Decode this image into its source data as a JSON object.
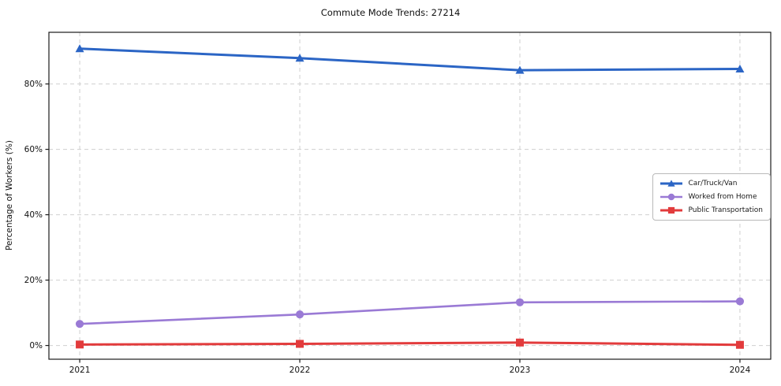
{
  "chart_data": {
    "type": "line",
    "title": "Commute Mode Trends: 27214",
    "xlabel": "",
    "ylabel": "Percentage of Workers (%)",
    "x": [
      2021,
      2022,
      2023,
      2024
    ],
    "x_tick_labels": [
      "2021",
      "2022",
      "2023",
      "2024"
    ],
    "series": [
      {
        "name": "Car/Truck/Van",
        "marker": "triangle",
        "color": "#2b65c5",
        "line_width": 3,
        "values": [
          90.8,
          87.9,
          84.2,
          84.6
        ]
      },
      {
        "name": "Worked from Home",
        "marker": "circle",
        "color": "#9a7ad5",
        "line_width": 2.6,
        "values": [
          6.6,
          9.5,
          13.2,
          13.5
        ]
      },
      {
        "name": "Public Transportation",
        "marker": "square",
        "color": "#e23b3c",
        "line_width": 3,
        "values": [
          0.3,
          0.5,
          0.9,
          0.2
        ]
      }
    ],
    "yticks": [
      0,
      20,
      40,
      60,
      80
    ],
    "ytick_format": "{v}%",
    "xlim": [
      2020.86,
      2024.14
    ],
    "ylim": [
      -4.2,
      95.8
    ],
    "grid": "dashed-both-axes",
    "grid_color": "#cfcfcf",
    "frame_color": "#1a1a1a",
    "legend_position": "center-right-inside"
  }
}
